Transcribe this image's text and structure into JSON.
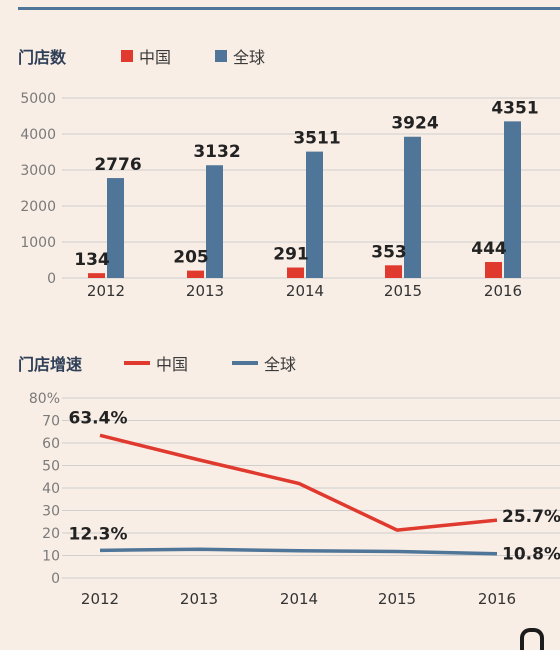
{
  "chart_data": [
    {
      "type": "bar",
      "title": "门店数",
      "categories": [
        "2012",
        "2013",
        "2014",
        "2015",
        "2016"
      ],
      "series": [
        {
          "name": "中国",
          "values": [
            134,
            205,
            291,
            353,
            444
          ],
          "color": "#e0392e"
        },
        {
          "name": "全球",
          "values": [
            2776,
            3132,
            3511,
            3924,
            4351
          ],
          "color": "#4f7598"
        }
      ],
      "yticks": [
        "0",
        "1000",
        "2000",
        "3000",
        "4000",
        "5000"
      ],
      "ylim": [
        0,
        5000
      ],
      "grid": true,
      "legend": "top"
    },
    {
      "type": "line",
      "title": "门店增速",
      "categories": [
        "2012",
        "2013",
        "2014",
        "2015",
        "2016"
      ],
      "series": [
        {
          "name": "中国",
          "values": [
            63.4,
            52.5,
            42,
            21.3,
            25.7
          ],
          "color": "#e0392e"
        },
        {
          "name": "全球",
          "values": [
            12.3,
            12.8,
            12.1,
            11.8,
            10.8
          ],
          "color": "#4f7598"
        }
      ],
      "annotations": [
        "63.4%",
        "25.7%",
        "12.3%",
        "10.8%"
      ],
      "yticks": [
        "0",
        "10",
        "20",
        "30",
        "40",
        "50",
        "60",
        "70",
        "80%"
      ],
      "ylim": [
        0,
        80
      ],
      "grid": true,
      "legend": "top"
    }
  ],
  "colors": {
    "background": "#f9eee6",
    "rule": "#4f7598"
  },
  "icon": "corner-partial-glyph-icon"
}
